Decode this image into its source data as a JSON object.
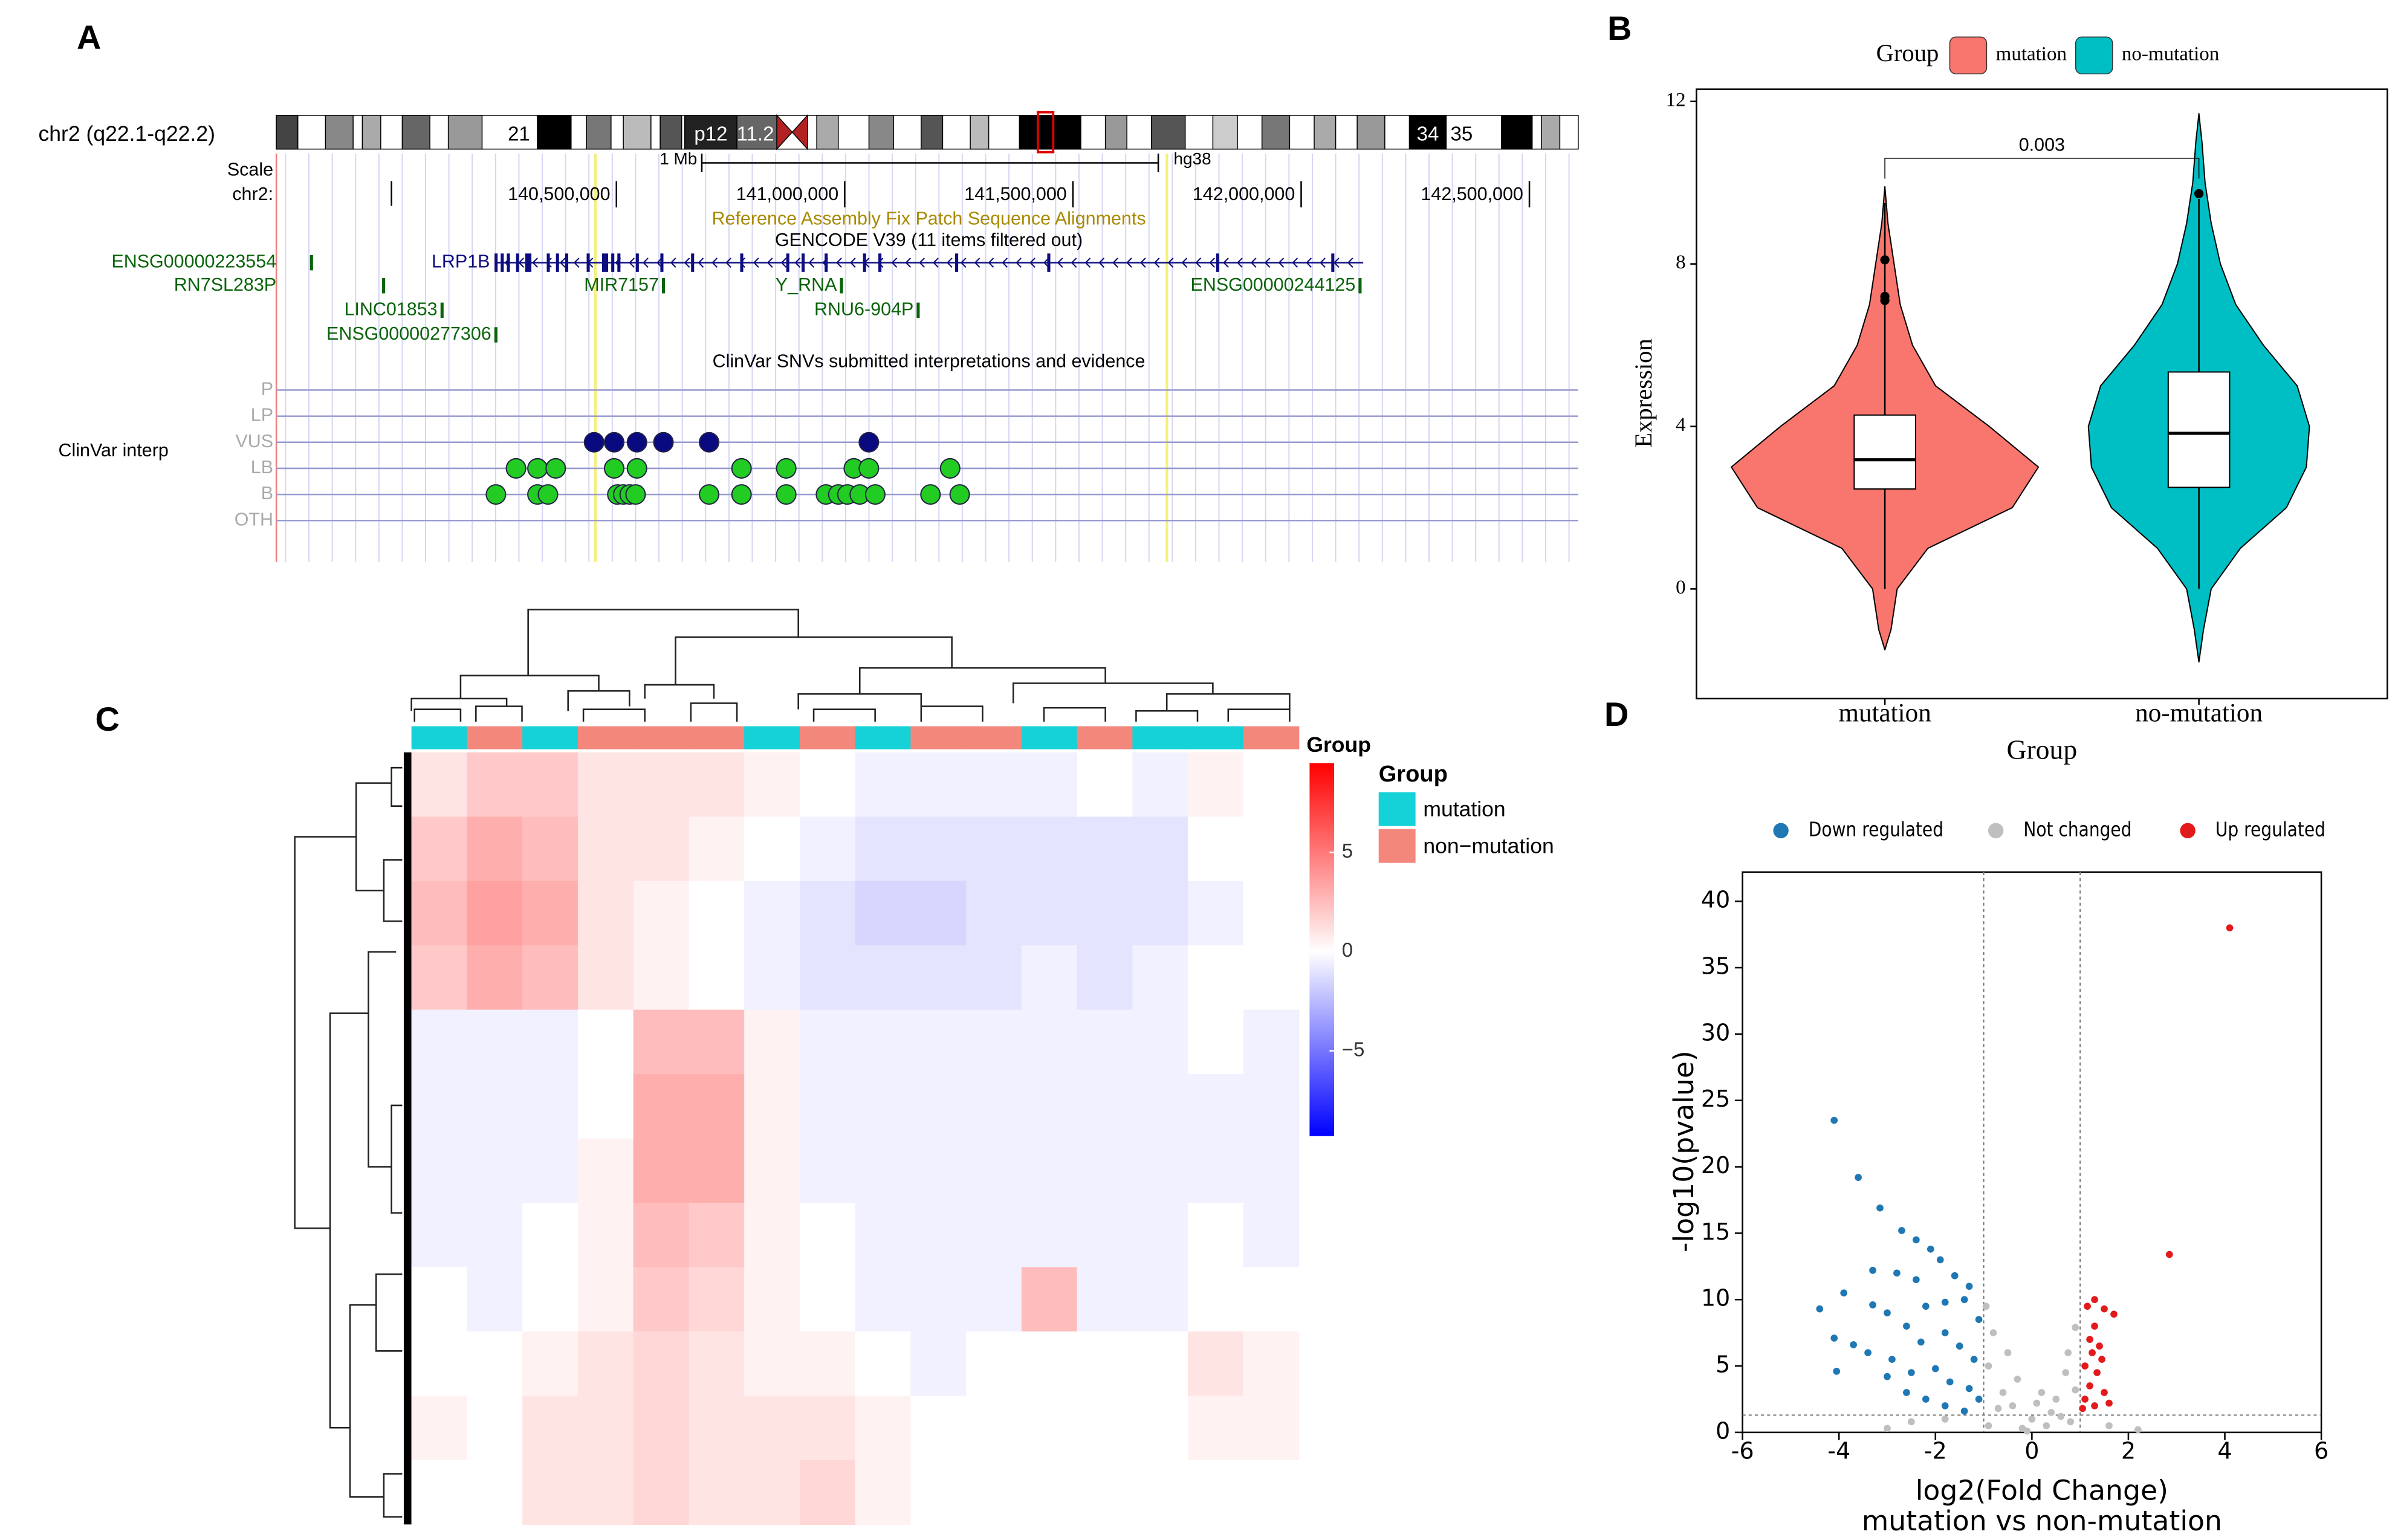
{
  "chart_data": [
    {
      "type": "genome-track",
      "label": "A",
      "chrom_label": "chr2 (q22.1-q22.2)",
      "bands": [
        "21",
        "p12",
        "11.2",
        "34",
        "35"
      ],
      "scale_label": "Scale",
      "scale_bar": {
        "start": 140687000,
        "length": 1000000,
        "label": "1 Mb"
      },
      "assembly": "hg38",
      "axis_label": "chr2:",
      "xlim": [
        139755000,
        142607000
      ],
      "xticks": [
        {
          "value": 140500000,
          "label": "140,500,000"
        },
        {
          "value": 141000000,
          "label": "141,000,000"
        },
        {
          "value": 141500000,
          "label": "141,500,000"
        },
        {
          "value": 142000000,
          "label": "142,000,000"
        },
        {
          "value": 142500000,
          "label": "142,500,000"
        }
      ],
      "tracks": [
        "Reference Assembly Fix Patch Sequence Alignments",
        "GENCODE V39 (11 items filtered out)",
        "ClinVar SNVs submitted interpretations and evidence"
      ],
      "genes": [
        {
          "name": "ENSG00000223554",
          "position": 139832000
        },
        {
          "name": "RN7SL283P",
          "position": 139990000
        },
        {
          "name": "LINC01853",
          "position": 140118000
        },
        {
          "name": "ENSG00000277306",
          "position": 140236000
        },
        {
          "name": "LRP1B",
          "start": 140233000,
          "end": 142136000
        },
        {
          "name": "MIR7157",
          "position": 140603000
        },
        {
          "name": "Y_RNA",
          "position": 140993000
        },
        {
          "name": "RNU6-904P",
          "position": 141161000
        },
        {
          "name": "ENSG00000244125",
          "position": 142129000
        }
      ],
      "highlight": [
        140454000,
        141706000
      ],
      "clinvar": {
        "title": "ClinVar interp",
        "categories": [
          "P",
          "LP",
          "VUS",
          "LB",
          "B",
          "OTH"
        ],
        "colors": [
          null,
          null,
          "#0a0a80",
          "#22cc22",
          "#22cc22",
          null
        ],
        "points": [
          [],
          [],
          [
            140451000,
            140495000,
            140545000,
            140603000,
            140703000,
            141053000
          ],
          [
            140280000,
            140327000,
            140367000,
            140495000,
            140545000,
            140774000,
            140872000,
            141020000,
            141053000,
            141231000
          ],
          [
            140236000,
            140327000,
            140350000,
            140502000,
            140515000,
            140529000,
            140542000,
            140703000,
            140774000,
            140872000,
            140959000,
            140986000,
            141006000,
            141033000,
            141067000,
            141188000,
            141252000
          ],
          []
        ]
      }
    },
    {
      "type": "violin",
      "label": "B",
      "legend_title": "Group",
      "xlabel": "Group",
      "ylabel": "Expression",
      "categories": [
        "mutation",
        "no-mutation"
      ],
      "colors": [
        "#f8766d",
        "#00bfc4"
      ],
      "ylim": [
        -2.7,
        12.3
      ],
      "yticks": [
        0,
        4,
        8,
        12
      ],
      "boxes": [
        {
          "q1": 2.46,
          "median": 3.18,
          "q3": 4.28,
          "whisker_low": 0,
          "whisker_high": 9.5,
          "outliers": [
            7.1,
            7.2,
            8.1
          ]
        },
        {
          "q1": 2.5,
          "median": 3.83,
          "q3": 5.34,
          "whisker_low": 0,
          "whisker_high": 9.6,
          "outliers": [
            9.73
          ]
        }
      ],
      "density": [
        {
          "y": [
            -1.5,
            -1,
            0,
            1,
            2,
            3,
            4,
            5,
            6,
            7,
            8,
            9,
            9.9
          ],
          "width": [
            0,
            0.04,
            0.08,
            0.28,
            0.83,
            1,
            0.68,
            0.33,
            0.18,
            0.1,
            0.06,
            0.02,
            0
          ]
        },
        {
          "y": [
            -1.8,
            -1,
            0,
            1,
            2,
            3,
            4,
            5,
            6,
            7,
            8,
            9,
            10,
            11,
            11.7
          ],
          "width": [
            0,
            0.03,
            0.08,
            0.27,
            0.57,
            0.7,
            0.72,
            0.64,
            0.42,
            0.24,
            0.14,
            0.08,
            0.04,
            0.02,
            0
          ]
        }
      ],
      "annotation": {
        "text": "0.003",
        "y": 10.6,
        "y_end": 10.1
      }
    },
    {
      "type": "heatmap",
      "label": "C",
      "colorbar_title": "Group",
      "legend_title": "Group",
      "groups": [
        "mutation",
        "non−mutation"
      ],
      "group_colors": [
        "#14d2d8",
        "#f4877c"
      ],
      "column_groups": [
        0,
        1,
        0,
        1,
        1,
        1,
        0,
        1,
        0,
        1,
        1,
        0,
        1,
        0,
        0,
        1
      ],
      "zlim": [
        -9.3,
        9.5
      ],
      "zticks": [
        5,
        0,
        {
          "value": -5,
          "label": "−5"
        }
      ],
      "colors": {
        "low": "#0000ff",
        "mid": "#ffffff",
        "high": "#ff0000"
      },
      "values": [
        [
          1,
          2,
          2,
          1,
          1,
          1,
          0.5,
          0,
          -0.5,
          -0.5,
          -0.5,
          -0.5,
          0,
          -0.5,
          0.5,
          0
        ],
        [
          2,
          3,
          2.5,
          1,
          1,
          0.5,
          0,
          -0.5,
          -1,
          -1,
          -1,
          -1,
          -1,
          -1,
          0,
          0
        ],
        [
          2.5,
          3.5,
          3,
          1,
          0.5,
          0,
          -0.5,
          -1,
          -1.5,
          -1.5,
          -1,
          -1,
          -1,
          -1,
          -0.5,
          0
        ],
        [
          2,
          3,
          2.5,
          1,
          0.5,
          0,
          -0.5,
          -1,
          -1,
          -1,
          -1,
          -0.5,
          -1,
          -0.5,
          0,
          0
        ],
        [
          -0.5,
          -0.5,
          -0.5,
          0,
          2.5,
          2.5,
          0.5,
          -0.5,
          -0.5,
          -0.5,
          -0.5,
          -0.5,
          -0.5,
          -0.5,
          0,
          -0.5
        ],
        [
          -0.5,
          -0.5,
          -0.5,
          0,
          3,
          3,
          0.5,
          -0.5,
          -0.5,
          -0.5,
          -0.5,
          -0.5,
          -0.5,
          -0.5,
          -0.5,
          -0.5
        ],
        [
          -0.5,
          -0.5,
          -0.5,
          0.5,
          3,
          3,
          0.5,
          -0.5,
          -0.5,
          -0.5,
          -0.5,
          -0.5,
          -0.5,
          -0.5,
          -0.5,
          -0.5
        ],
        [
          -0.5,
          -0.5,
          0,
          0.5,
          2.5,
          2,
          0.5,
          0,
          -0.5,
          -0.5,
          -0.5,
          -0.5,
          -0.5,
          -0.5,
          0,
          -0.5
        ],
        [
          0,
          -0.5,
          0,
          0.5,
          2,
          1.5,
          0.5,
          0,
          -0.5,
          -0.5,
          -0.5,
          2.5,
          -0.5,
          -0.5,
          0,
          0
        ],
        [
          0,
          0,
          0.5,
          1,
          1.5,
          1,
          0.5,
          0.5,
          0,
          -0.5,
          0,
          0,
          0,
          0,
          1,
          0.5
        ],
        [
          0.5,
          0,
          1,
          1,
          1.5,
          1,
          1,
          1,
          0.5,
          0,
          0,
          0,
          0,
          0,
          0.5,
          0.5
        ],
        [
          0,
          0,
          1,
          1,
          1.5,
          1,
          1,
          1.5,
          0.5,
          0,
          0,
          0,
          0,
          0,
          0,
          0
        ]
      ]
    },
    {
      "type": "scatter",
      "label": "D",
      "xlabel": "log2(Fold Change)",
      "subtitle": "mutation vs non-mutation",
      "ylabel": "-log10(pvalue)",
      "xlim": [
        -6,
        6
      ],
      "xticks": [
        -6,
        -4,
        -2,
        0,
        2,
        4,
        6
      ],
      "ylim": [
        0,
        42.2
      ],
      "yticks": [
        0,
        5,
        10,
        15,
        20,
        25,
        30,
        35,
        40
      ],
      "vlines": [
        -1,
        1
      ],
      "hline": 1.3,
      "series": [
        {
          "name": "Down regulated",
          "color": "#1f77b4",
          "x": [
            -4.1,
            -3.6,
            -3.15,
            -2.7,
            -2.4,
            -2.1,
            -1.9,
            -3.3,
            -2.8,
            -2.4,
            -1.6,
            -1.3,
            -4.4,
            -3.9,
            -3.3,
            -3,
            -2.2,
            -1.8,
            -1.4,
            -1.1,
            -2.6,
            -4.1,
            -4.05,
            -3.7,
            -3.4,
            -2.9,
            -2.3,
            -1.8,
            -1.5,
            -1.2,
            -2.5,
            -2,
            -1.7,
            -1.3,
            -2.2,
            -1.8,
            -1.4,
            -1.1,
            -2.6,
            -3
          ],
          "values": [
            23.5,
            19.2,
            16.9,
            15.2,
            14.5,
            13.8,
            13,
            12.2,
            12,
            11.5,
            11.8,
            11,
            9.3,
            10.5,
            9.6,
            9,
            9.5,
            9.8,
            10,
            8.5,
            8,
            7.1,
            4.6,
            6.6,
            6,
            5.5,
            6.8,
            7.5,
            6.5,
            5.5,
            4.5,
            4.8,
            3.8,
            3.3,
            2.5,
            2,
            1.6,
            2.5,
            3,
            4.2
          ]
        },
        {
          "name": "Not changed",
          "color": "#bfbfbf",
          "x": [
            -0.8,
            -0.5,
            -0.9,
            -0.3,
            0.2,
            0.5,
            0.7,
            0.9,
            -0.6,
            0,
            0.3,
            -0.2,
            0.6,
            -0.7,
            0.8,
            -0.4,
            0.1,
            -0.9,
            0.4,
            -0.1,
            0.9,
            0.75,
            -2.5,
            -3,
            1.6,
            2.2,
            -1.8,
            -0.95
          ],
          "values": [
            7.5,
            6,
            5,
            4,
            3,
            2.5,
            4.5,
            3.2,
            3,
            1,
            0.5,
            0.3,
            1.2,
            1.8,
            0.8,
            2,
            2.2,
            0.5,
            1.5,
            0.1,
            7.9,
            6,
            0.8,
            0.3,
            0.5,
            0.2,
            1,
            9.5
          ]
        },
        {
          "name": "Up regulated",
          "color": "#e31a1c",
          "x": [
            4.1,
            2.85,
            1.3,
            1.5,
            1.7,
            1.15,
            1.3,
            1.2,
            1.4,
            1.1,
            1.35,
            1.2,
            1.5,
            1.1,
            1.3,
            1.6,
            1.05,
            1.45,
            1.25
          ],
          "values": [
            38,
            13.4,
            10,
            9.3,
            8.9,
            9.5,
            8,
            7,
            6.5,
            5,
            4.5,
            3.5,
            3,
            2.5,
            2,
            2.2,
            1.8,
            5.5,
            6
          ]
        }
      ]
    }
  ]
}
